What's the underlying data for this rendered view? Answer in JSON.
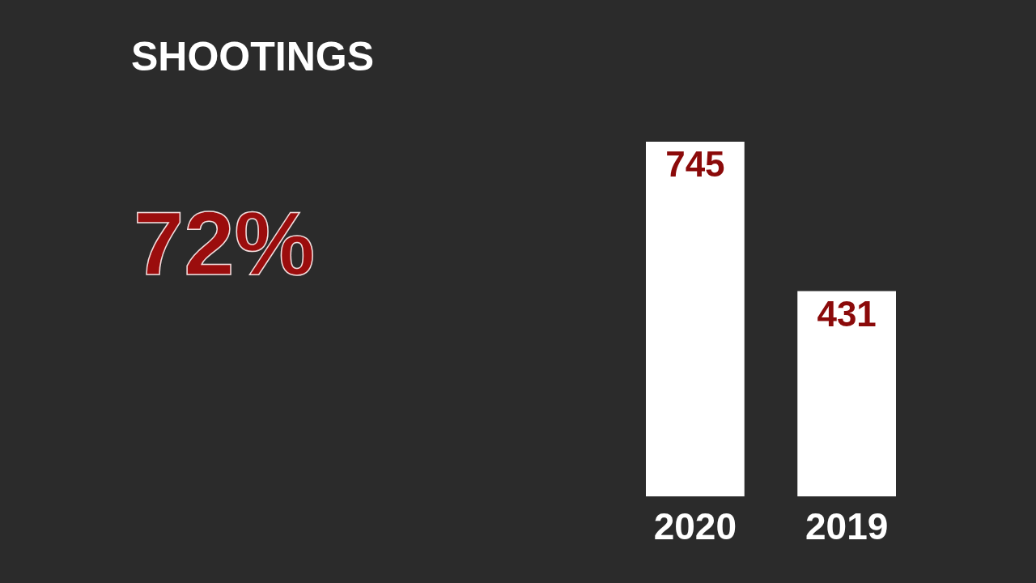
{
  "chart_data": {
    "type": "bar",
    "title": "SHOOTINGS",
    "categories": [
      "2020",
      "2019"
    ],
    "values": [
      745,
      431
    ],
    "color": "#ffffff",
    "data_labels": true,
    "annotations": [
      "72%"
    ]
  }
}
